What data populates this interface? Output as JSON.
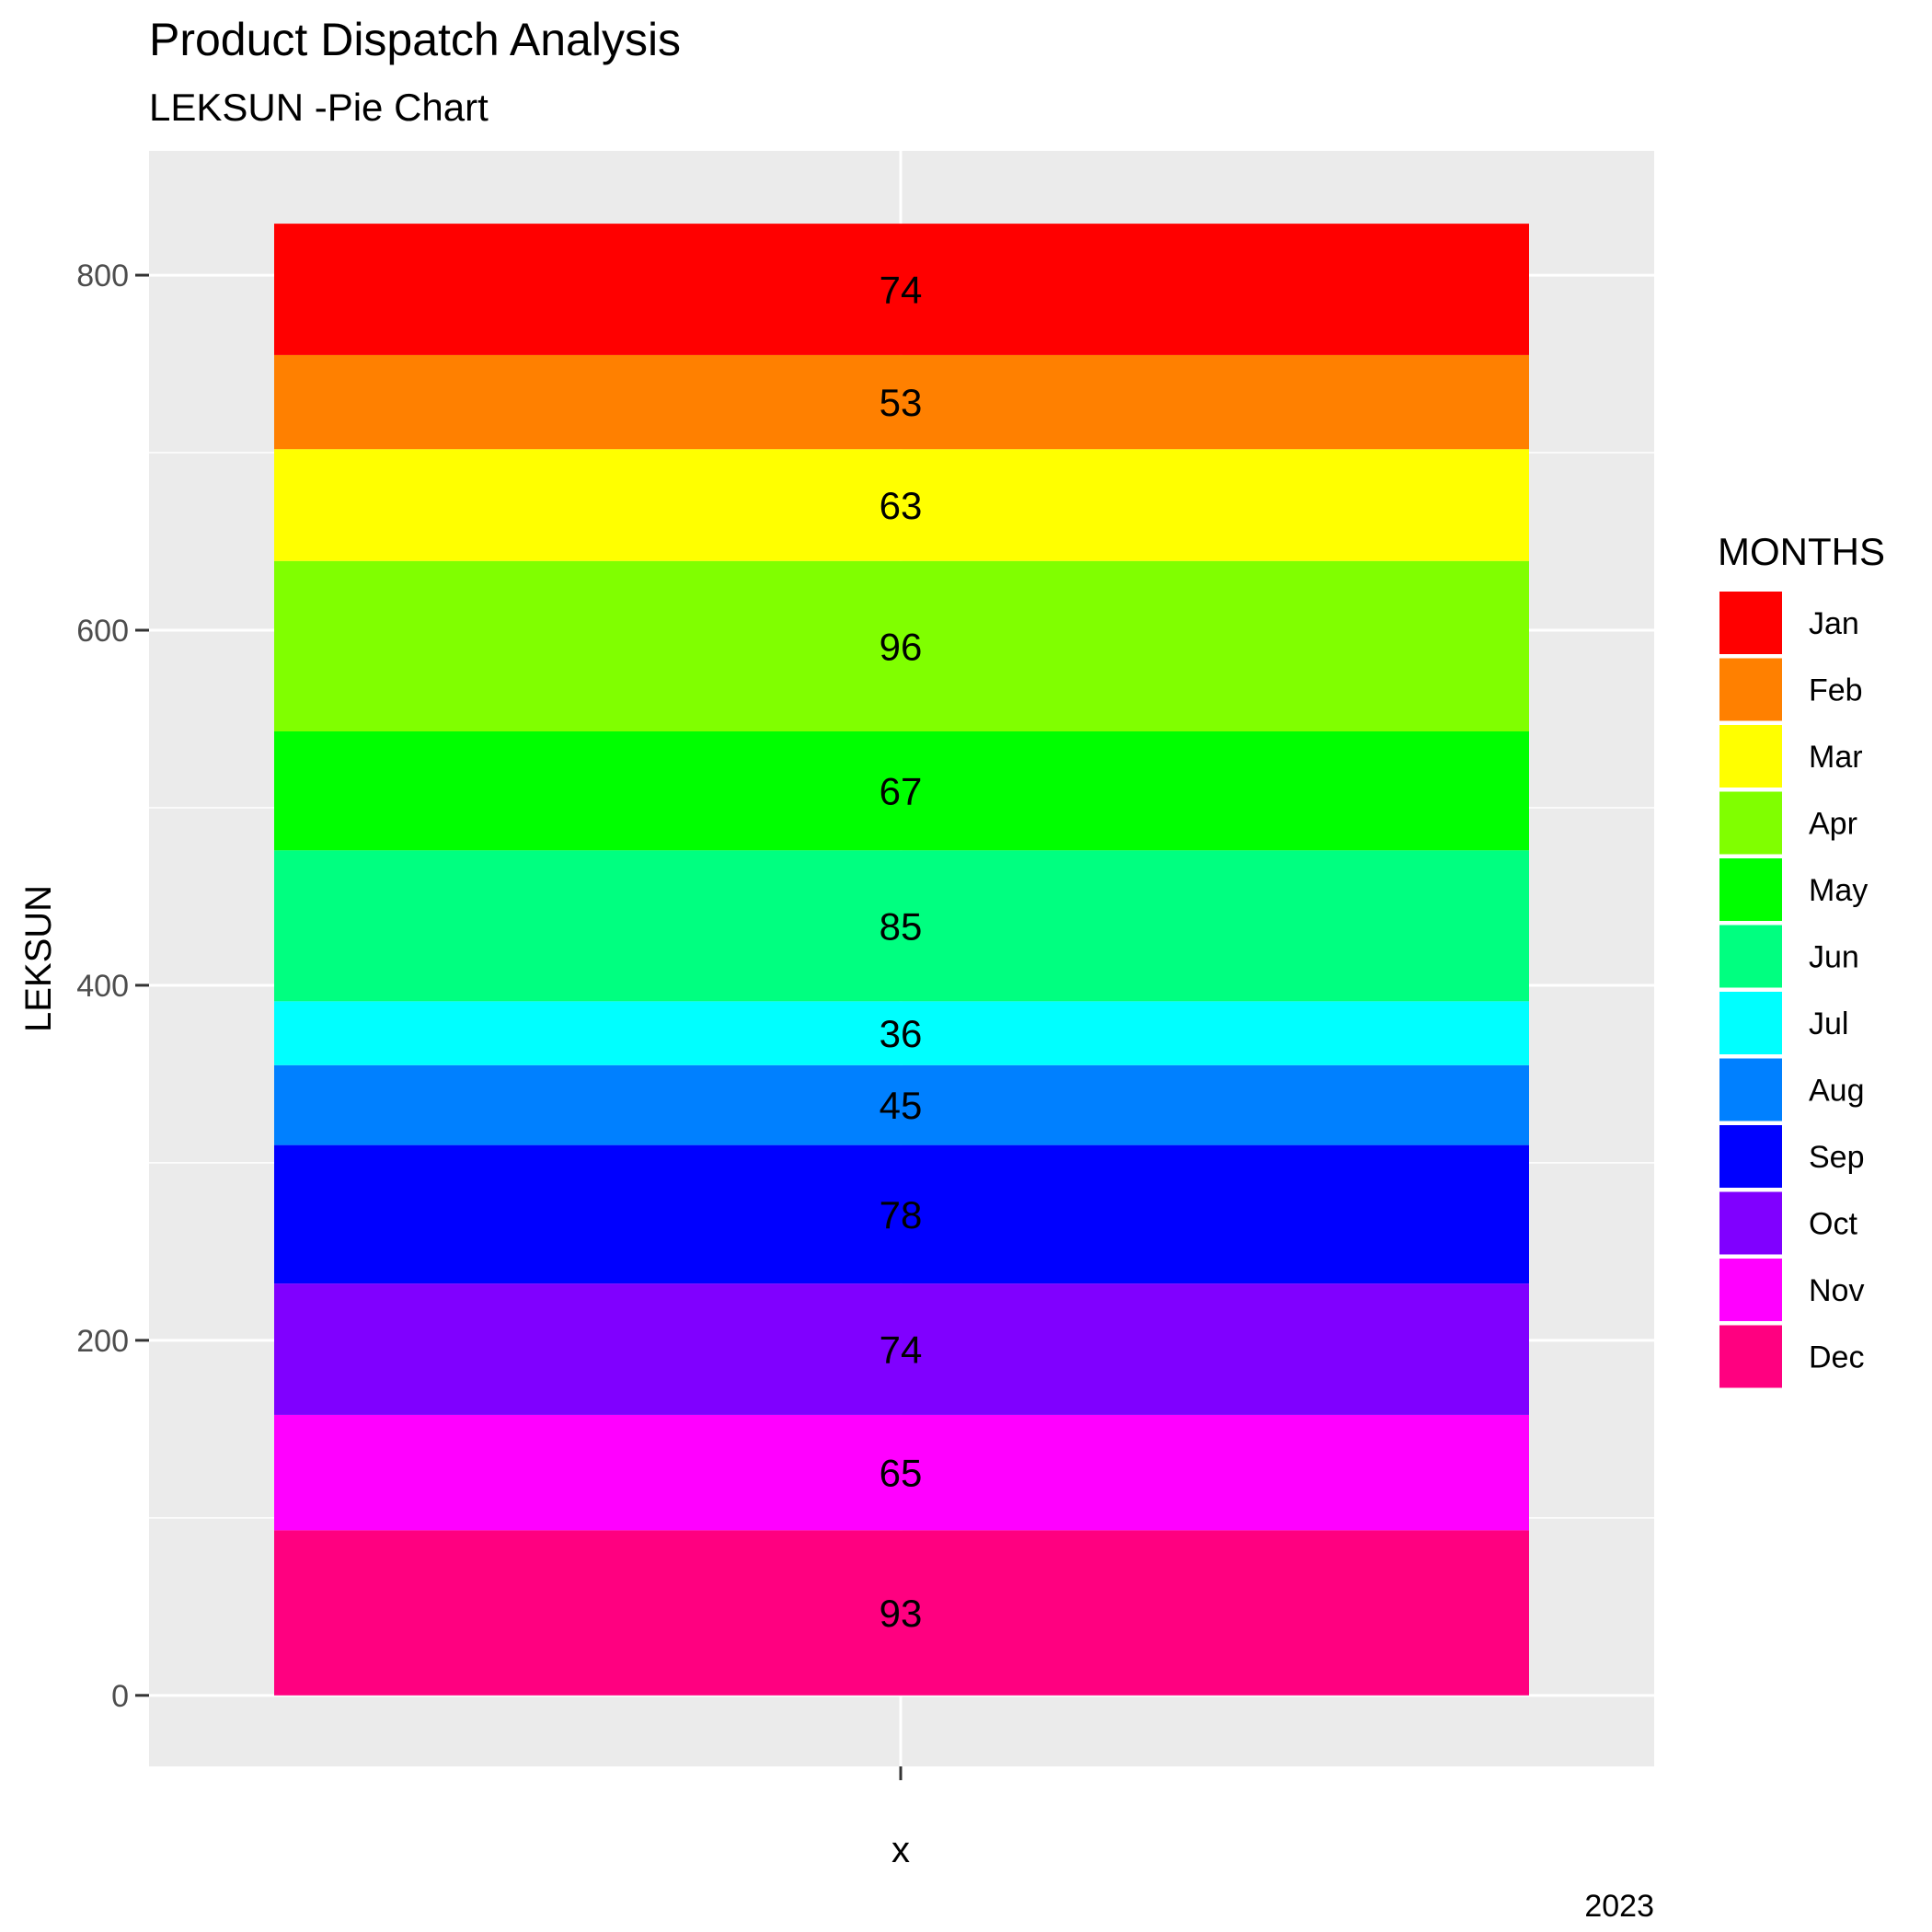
{
  "chart_data": {
    "type": "bar",
    "title": "Product Dispatch Analysis",
    "subtitle": "LEKSUN -Pie Chart",
    "caption": "2023",
    "xlabel": "x",
    "ylabel": "LEKSUN",
    "ylim": [
      -40,
      870
    ],
    "yticks": [
      0,
      200,
      400,
      600,
      800
    ],
    "grid": true,
    "legend": {
      "title": "MONTHS",
      "position": "right"
    },
    "series": [
      {
        "name": "Jan",
        "value": 74,
        "color": "#FF0000"
      },
      {
        "name": "Feb",
        "value": 53,
        "color": "#FF8000"
      },
      {
        "name": "Mar",
        "value": 63,
        "color": "#FFFF00"
      },
      {
        "name": "Apr",
        "value": 96,
        "color": "#80FF00"
      },
      {
        "name": "May",
        "value": 67,
        "color": "#00FF00"
      },
      {
        "name": "Jun",
        "value": 85,
        "color": "#00FF80"
      },
      {
        "name": "Jul",
        "value": 36,
        "color": "#00FFFF"
      },
      {
        "name": "Aug",
        "value": 45,
        "color": "#0080FF"
      },
      {
        "name": "Sep",
        "value": 78,
        "color": "#0000FF"
      },
      {
        "name": "Oct",
        "value": 74,
        "color": "#8000FF"
      },
      {
        "name": "Nov",
        "value": 65,
        "color": "#FF00FF"
      },
      {
        "name": "Dec",
        "value": 93,
        "color": "#FF0080"
      }
    ]
  }
}
